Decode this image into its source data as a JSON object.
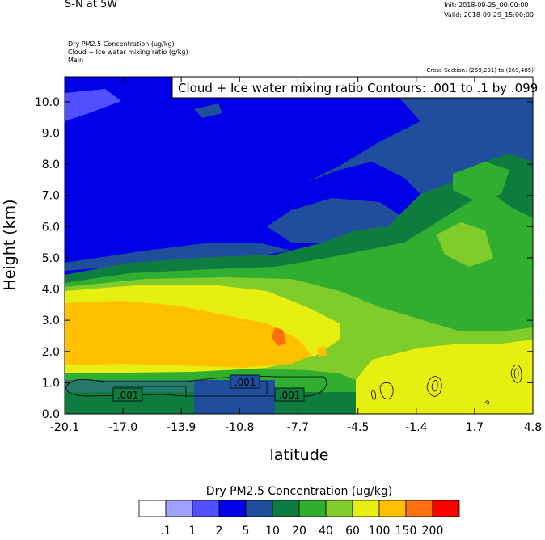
{
  "header": {
    "title": "S-N at 5W",
    "init": "Init: 2018-09-25_00:00:00",
    "valid": "Valid: 2018-09-29_15:00:00",
    "field_line1": "Dry PM2.5 Concentration   (ug/kg)",
    "field_line2": "Cloud + Ice water mixing ratio   (g/kg)",
    "field_line3": "Main",
    "cross_section": "Cross-Section: (269,231) to (269,485)",
    "contour_info": "Cloud + Ice water mixing ratio Contours: .001 to .1 by .099"
  },
  "chart_data": {
    "type": "heatmap",
    "xlabel": "latitude",
    "ylabel": "Height (km)",
    "xlim": [
      -20.1,
      4.8
    ],
    "ylim": [
      0.0,
      10.8
    ],
    "xticks": [
      "-20.1",
      "-17.0",
      "-13.9",
      "-10.8",
      "-7.7",
      "-4.5",
      "-1.4",
      "1.7",
      "4.8"
    ],
    "yticks": [
      "0.0",
      "1.0",
      "2.0",
      "3.0",
      "4.0",
      "5.0",
      "6.0",
      "7.0",
      "8.0",
      "9.0",
      "10.0"
    ],
    "colorbar": {
      "title": "Dry PM2.5 Concentration  (ug/kg)",
      "labels": [
        ".1",
        "1",
        "2",
        "5",
        "10",
        "20",
        "40",
        "60",
        "100",
        "150",
        "200"
      ],
      "colors": [
        "#ffffff",
        "#a0a0ff",
        "#5050ff",
        "#0000e8",
        "#1f4e9c",
        "#0e7c3e",
        "#2fae2f",
        "#7fcc2a",
        "#e6ef10",
        "#ffc000",
        "#ff7010",
        "#ff0000"
      ]
    },
    "contour_labels": [
      ".001",
      ".001",
      ".001"
    ]
  }
}
